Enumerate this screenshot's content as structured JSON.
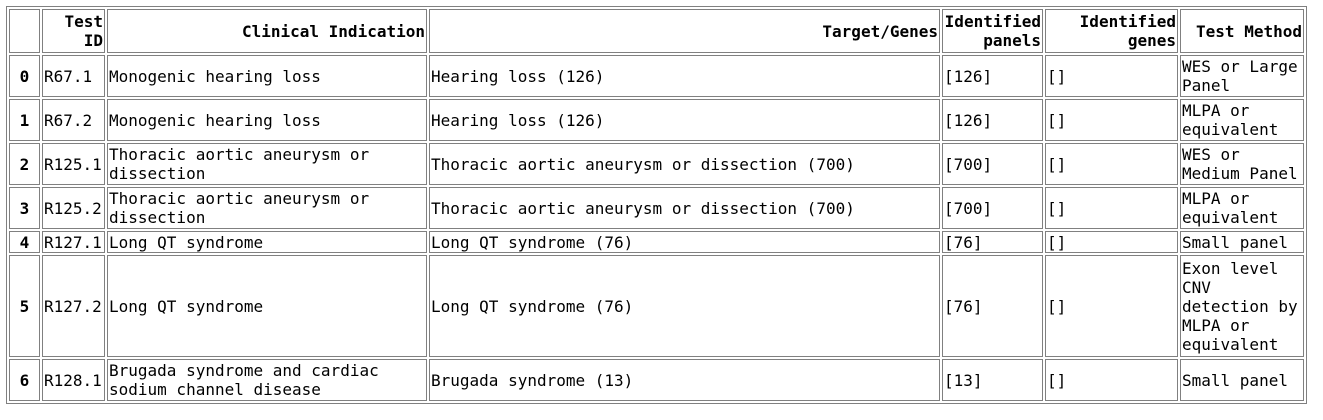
{
  "table": {
    "headers": [
      "",
      "Test ID",
      "Clinical Indication",
      "Target/Genes",
      "Identified panels",
      "Identified genes",
      "Test Method"
    ],
    "rows": [
      [
        "0",
        "R67.1",
        "Monogenic hearing loss",
        "Hearing loss (126)",
        "[126]",
        "[]",
        "WES or Large Panel"
      ],
      [
        "1",
        "R67.2",
        "Monogenic hearing loss",
        "Hearing loss (126)",
        "[126]",
        "[]",
        "MLPA or equivalent"
      ],
      [
        "2",
        "R125.1",
        "Thoracic aortic aneurysm or dissection",
        "Thoracic aortic aneurysm or dissection (700)",
        "[700]",
        "[]",
        "WES or Medium Panel"
      ],
      [
        "3",
        "R125.2",
        "Thoracic aortic aneurysm or dissection",
        "Thoracic aortic aneurysm or dissection (700)",
        "[700]",
        "[]",
        "MLPA or equivalent"
      ],
      [
        "4",
        "R127.1",
        "Long QT syndrome",
        "Long QT syndrome (76)",
        "[76]",
        "[]",
        "Small panel"
      ],
      [
        "5",
        "R127.2",
        "Long QT syndrome",
        "Long QT syndrome (76)",
        "[76]",
        "[]",
        "Exon level CNV detection by MLPA or equivalent"
      ],
      [
        "6",
        "R128.1",
        "Brugada syndrome and cardiac sodium channel disease",
        "Brugada syndrome (13)",
        "[13]",
        "[]",
        "Small panel"
      ]
    ]
  }
}
